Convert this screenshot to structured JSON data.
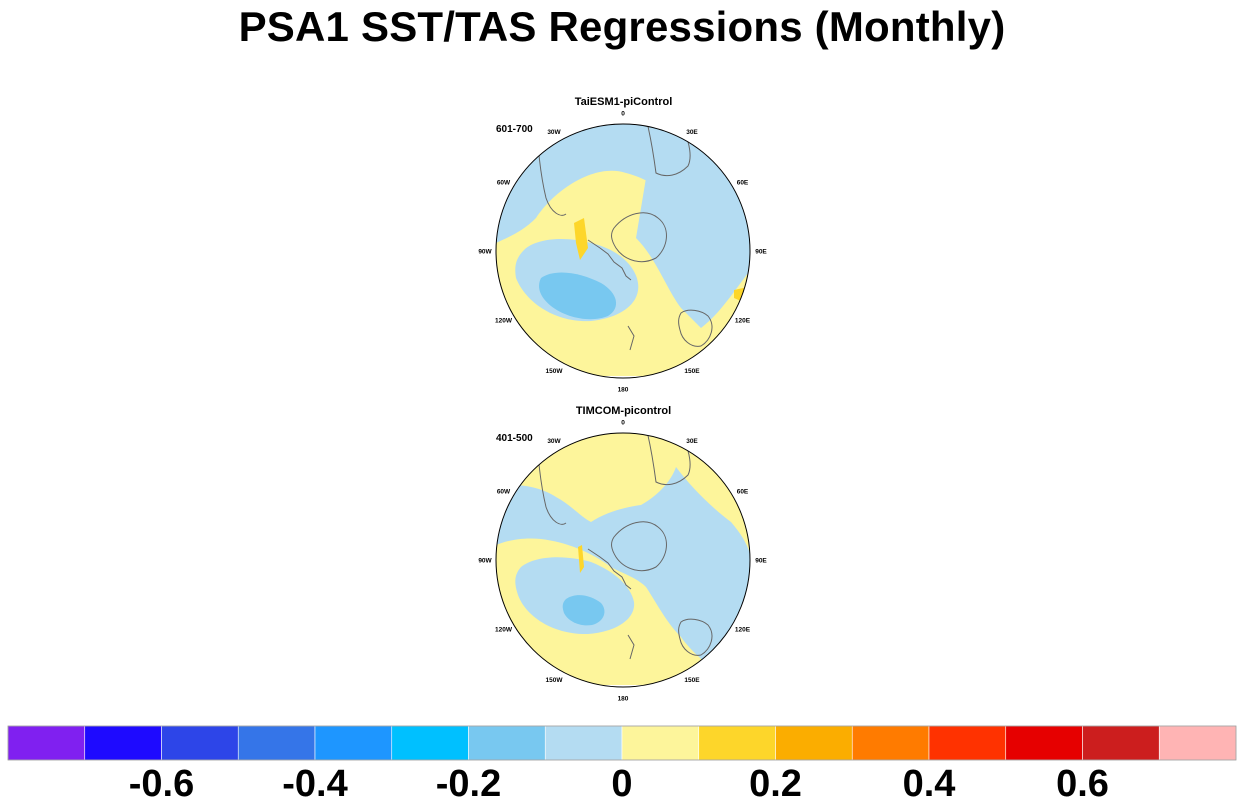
{
  "title": "PSA1 SST/TAS Regressions (Monthly)",
  "panels": [
    {
      "title": "TaiESM1-piControl",
      "period": "601-700"
    },
    {
      "title": "TIMCOM-picontrol",
      "period": "401-500"
    }
  ],
  "longitude_labels": [
    "0",
    "30E",
    "60E",
    "90E",
    "120E",
    "150E",
    "180",
    "150W",
    "120W",
    "90W",
    "60W",
    "30W"
  ],
  "colors": {
    "land_outline": "#666666",
    "ocean_positive_weak": "#fdf59b",
    "ocean_negative_weak": "#b4dcf2",
    "negative_moderate": "#78c8f0",
    "positive_moderate": "#fdd62a"
  },
  "colorbar": {
    "colors": [
      "#8020f0",
      "#1e0aff",
      "#2d45e8",
      "#3575e8",
      "#1e96ff",
      "#00c0ff",
      "#78c8f0",
      "#b4dcf2",
      "#fdf59b",
      "#fdd62a",
      "#fbad00",
      "#ff7b00",
      "#ff3200",
      "#e60000",
      "#cc1e1e",
      "#ffb4b4"
    ],
    "labels": [
      "-0.6",
      "-0.4",
      "-0.2",
      "0",
      "0.2",
      "0.4",
      "0.6"
    ]
  }
}
